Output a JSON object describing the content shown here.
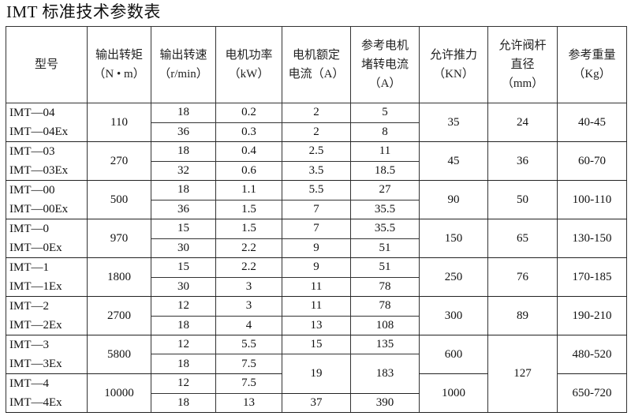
{
  "title": "IMT 标准技术参数表",
  "table": {
    "headers": [
      [
        "型号"
      ],
      [
        "输出转矩",
        "（N • m）"
      ],
      [
        "输出转速",
        "（r/min）"
      ],
      [
        "电机功率",
        "（kW）"
      ],
      [
        "电机额定",
        "电流（A）"
      ],
      [
        "参考电机",
        "堵转电流",
        "（A）"
      ],
      [
        "允许推力",
        "（KN）"
      ],
      [
        "允许阀杆",
        "直径",
        "（mm）"
      ],
      [
        "参考重量",
        "（Kg）"
      ]
    ],
    "groups": [
      {
        "models": [
          "IMT—04",
          "IMT—04Ex"
        ],
        "torque": "110",
        "rows": [
          {
            "speed": "18",
            "power": "0.2",
            "current": "2",
            "stall": "5"
          },
          {
            "speed": "36",
            "power": "0.3",
            "current": "2",
            "stall": "8"
          }
        ],
        "thrust": "35",
        "stem": "24",
        "weight": "40-45"
      },
      {
        "models": [
          "IMT—03",
          "IMT—03Ex"
        ],
        "torque": "270",
        "rows": [
          {
            "speed": "18",
            "power": "0.4",
            "current": "2.5",
            "stall": "11"
          },
          {
            "speed": "32",
            "power": "0.6",
            "current": "3.5",
            "stall": "18.5"
          }
        ],
        "thrust": "45",
        "stem": "36",
        "weight": "60-70"
      },
      {
        "models": [
          "IMT—00",
          "IMT—00Ex"
        ],
        "torque": "500",
        "rows": [
          {
            "speed": "18",
            "power": "1.1",
            "current": "5.5",
            "stall": "27"
          },
          {
            "speed": "36",
            "power": "1.5",
            "current": "7",
            "stall": "35.5"
          }
        ],
        "thrust": "90",
        "stem": "50",
        "weight": "100-110"
      },
      {
        "models": [
          "IMT—0",
          "IMT—0Ex"
        ],
        "torque": "970",
        "rows": [
          {
            "speed": "15",
            "power": "1.5",
            "current": "7",
            "stall": "35.5"
          },
          {
            "speed": "30",
            "power": "2.2",
            "current": "9",
            "stall": "51"
          }
        ],
        "thrust": "150",
        "stem": "65",
        "weight": "130-150"
      },
      {
        "models": [
          "IMT—1",
          "IMT—1Ex"
        ],
        "torque": "1800",
        "rows": [
          {
            "speed": "15",
            "power": "2.2",
            "current": "9",
            "stall": "51"
          },
          {
            "speed": "30",
            "power": "3",
            "current": "11",
            "stall": "78"
          }
        ],
        "thrust": "250",
        "stem": "76",
        "weight": "170-185"
      },
      {
        "models": [
          "IMT—2",
          "IMT—2Ex"
        ],
        "torque": "2700",
        "rows": [
          {
            "speed": "12",
            "power": "3",
            "current": "11",
            "stall": "78"
          },
          {
            "speed": "18",
            "power": "4",
            "current": "13",
            "stall": "108"
          }
        ],
        "thrust": "300",
        "stem": "89",
        "weight": "190-210"
      },
      {
        "models": [
          "IMT—3",
          "IMT—3Ex"
        ],
        "torque": "5800",
        "rows": [
          {
            "speed": "12",
            "power": "5.5",
            "current": "15",
            "stall": "135"
          },
          {
            "speed": "18",
            "power": "7.5",
            "current": "19",
            "stall": "183"
          }
        ],
        "thrust": "600",
        "stem": "127",
        "weight": "480-520"
      },
      {
        "models": [
          "IMT—4",
          "IMT—4Ex"
        ],
        "torque": "10000",
        "rows": [
          {
            "speed": "12",
            "power": "7.5",
            "current": null,
            "stall": null
          },
          {
            "speed": "18",
            "power": "13",
            "current": "37",
            "stall": "390"
          }
        ],
        "thrust": "1000",
        "stem": null,
        "weight": "650-720"
      }
    ]
  }
}
